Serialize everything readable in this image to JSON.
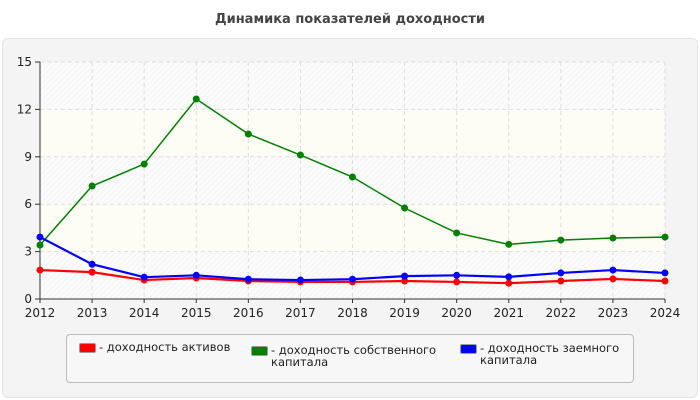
{
  "chart_data": {
    "type": "line",
    "title": "Динамика показателей доходности",
    "xlabel": "",
    "ylabel": "",
    "x": [
      2012,
      2013,
      2014,
      2015,
      2016,
      2017,
      2018,
      2019,
      2020,
      2021,
      2022,
      2023,
      2024
    ],
    "ylim": [
      0,
      15
    ],
    "yticks": [
      0,
      3,
      6,
      9,
      12,
      15
    ],
    "grid": true,
    "legend_position": "bottom",
    "series": [
      {
        "name": "доходность активов",
        "color": "#ff0000",
        "values": [
          1.83,
          1.7,
          1.2,
          1.33,
          1.14,
          1.08,
          1.08,
          1.14,
          1.08,
          1.0,
          1.14,
          1.27,
          1.14
        ]
      },
      {
        "name": "доходность собственного капитала",
        "color": "#008000",
        "values": [
          3.42,
          7.15,
          8.54,
          12.66,
          10.44,
          9.11,
          7.72,
          5.76,
          4.18,
          3.46,
          3.73,
          3.86,
          3.92
        ]
      },
      {
        "name": "доходность заемного капитала",
        "color": "#0000ff",
        "values": [
          3.92,
          2.2,
          1.38,
          1.5,
          1.25,
          1.2,
          1.25,
          1.45,
          1.5,
          1.4,
          1.65,
          1.83,
          1.65
        ]
      }
    ]
  },
  "legend": {
    "items": [
      {
        "label": "- доходность активов"
      },
      {
        "label": "- доходность собственного\nкапитала"
      },
      {
        "label": "- доходность заемного\nкапитала"
      }
    ]
  }
}
